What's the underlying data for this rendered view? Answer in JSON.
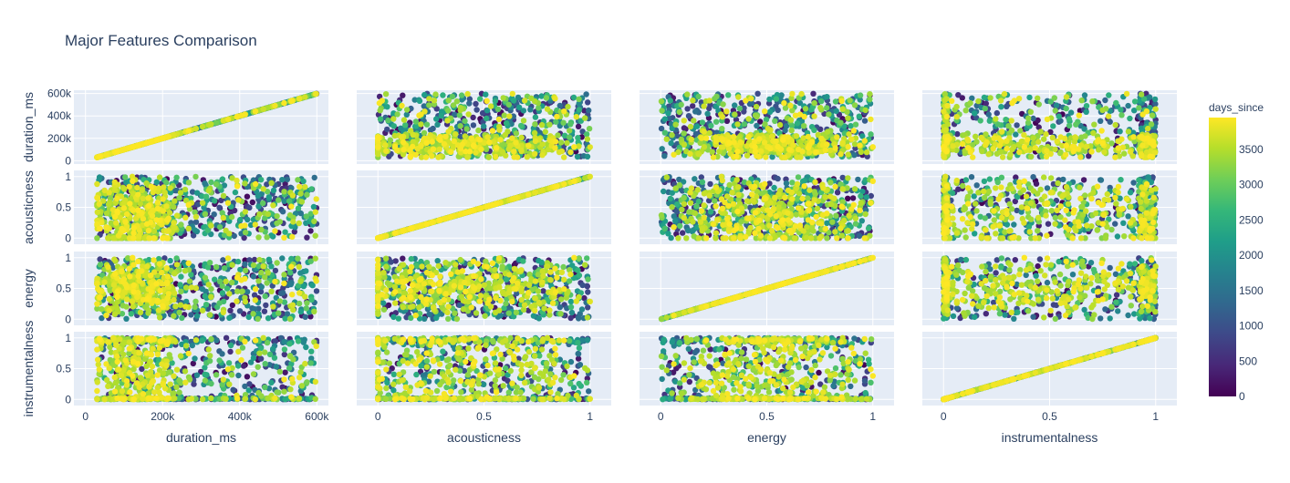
{
  "chart_data": {
    "type": "scatter",
    "title": "Major Features Comparison",
    "colorbar": {
      "title": "days_since",
      "range": [
        0,
        3950
      ],
      "ticks": [
        0,
        500,
        1000,
        1500,
        2000,
        2500,
        3000,
        3500
      ],
      "colorscale": "Viridis",
      "stops": [
        "#440154",
        "#482878",
        "#3e4989",
        "#31688e",
        "#26828e",
        "#1f9e89",
        "#35b779",
        "#6ece58",
        "#b5de2b",
        "#fde725"
      ]
    },
    "dimensions": [
      {
        "name": "duration_ms",
        "range": [
          30000,
          600000
        ],
        "axis_range": [
          -30000,
          630000
        ],
        "ticks": [
          0,
          200000,
          400000,
          600000
        ],
        "tick_labels": [
          "0",
          "200k",
          "400k",
          "600k"
        ]
      },
      {
        "name": "acousticness",
        "range": [
          0,
          1
        ],
        "axis_range": [
          -0.1,
          1.1
        ],
        "ticks": [
          0,
          0.5,
          1
        ],
        "tick_labels": [
          "0",
          "0.5",
          "1"
        ]
      },
      {
        "name": "energy",
        "range": [
          0,
          1
        ],
        "axis_range": [
          -0.1,
          1.1
        ],
        "ticks": [
          0,
          0.5,
          1
        ],
        "tick_labels": [
          "0",
          "0.5",
          "1"
        ]
      },
      {
        "name": "instrumentalness",
        "range": [
          0,
          1
        ],
        "axis_range": [
          -0.1,
          1.1
        ],
        "ticks": [
          0,
          0.5,
          1
        ],
        "tick_labels": [
          "0",
          "0.5",
          "1"
        ]
      }
    ],
    "marker_color_field": "days_since",
    "grid": true,
    "legend": "colorbar-right"
  }
}
